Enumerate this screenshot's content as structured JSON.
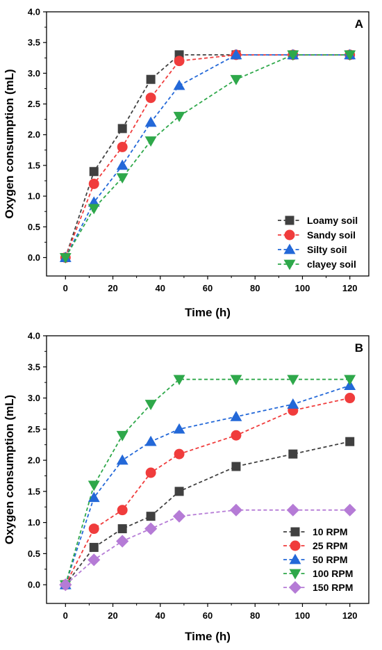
{
  "chart_data": [
    {
      "type": "line",
      "panel_label": "A",
      "xlabel": "Time (h)",
      "ylabel": "Oxygen consumption (mL)",
      "xlim": [
        -8,
        128
      ],
      "ylim": [
        -0.3,
        4.0
      ],
      "xticks": [
        0,
        20,
        40,
        60,
        80,
        100,
        120
      ],
      "yticks": [
        0.0,
        0.5,
        1.0,
        1.5,
        2.0,
        2.5,
        3.0,
        3.5,
        4.0
      ],
      "legend_position": "bottom-right",
      "x": [
        0,
        12,
        24,
        36,
        48,
        72,
        96,
        120
      ],
      "series": [
        {
          "name": "Loamy soil",
          "color": "#404040",
          "marker": "square",
          "values": [
            0,
            1.4,
            2.1,
            2.9,
            3.3,
            3.3,
            3.3,
            3.3
          ]
        },
        {
          "name": "Sandy soil",
          "color": "#f03c3c",
          "marker": "circle",
          "values": [
            0,
            1.2,
            1.8,
            2.6,
            3.2,
            3.3,
            3.3,
            3.3
          ]
        },
        {
          "name": "Silty soil",
          "color": "#2368d8",
          "marker": "triangle-up",
          "values": [
            0,
            0.9,
            1.5,
            2.2,
            2.8,
            3.3,
            3.3,
            3.3
          ]
        },
        {
          "name": "clayey soil",
          "color": "#2ea84a",
          "marker": "triangle-down",
          "values": [
            0,
            0.8,
            1.3,
            1.9,
            2.3,
            2.9,
            3.3,
            3.3
          ]
        }
      ]
    },
    {
      "type": "line",
      "panel_label": "B",
      "xlabel": "Time (h)",
      "ylabel": "Oxygen consumption (mL)",
      "xlim": [
        -8,
        128
      ],
      "ylim": [
        -0.3,
        4.0
      ],
      "xticks": [
        0,
        20,
        40,
        60,
        80,
        100,
        120
      ],
      "yticks": [
        0.0,
        0.5,
        1.0,
        1.5,
        2.0,
        2.5,
        3.0,
        3.5,
        4.0
      ],
      "legend_position": "bottom-right",
      "x": [
        0,
        12,
        24,
        36,
        48,
        72,
        96,
        120
      ],
      "series": [
        {
          "name": "10 RPM",
          "color": "#404040",
          "marker": "square",
          "values": [
            0,
            0.6,
            0.9,
            1.1,
            1.5,
            1.9,
            2.1,
            2.3
          ]
        },
        {
          "name": "25 RPM",
          "color": "#f03c3c",
          "marker": "circle",
          "values": [
            0,
            0.9,
            1.2,
            1.8,
            2.1,
            2.4,
            2.8,
            3.0
          ]
        },
        {
          "name": "50 RPM",
          "color": "#2368d8",
          "marker": "triangle-up",
          "values": [
            0,
            1.4,
            2.0,
            2.3,
            2.5,
            2.7,
            2.9,
            3.2
          ]
        },
        {
          "name": "100 RPM",
          "color": "#2ea84a",
          "marker": "triangle-down",
          "values": [
            0,
            1.6,
            2.4,
            2.9,
            3.3,
            3.3,
            3.3,
            3.3
          ]
        },
        {
          "name": "150 RPM",
          "color": "#b57bd6",
          "marker": "diamond",
          "values": [
            0,
            0.4,
            0.7,
            0.9,
            1.1,
            1.2,
            1.2,
            1.2
          ]
        }
      ]
    }
  ]
}
